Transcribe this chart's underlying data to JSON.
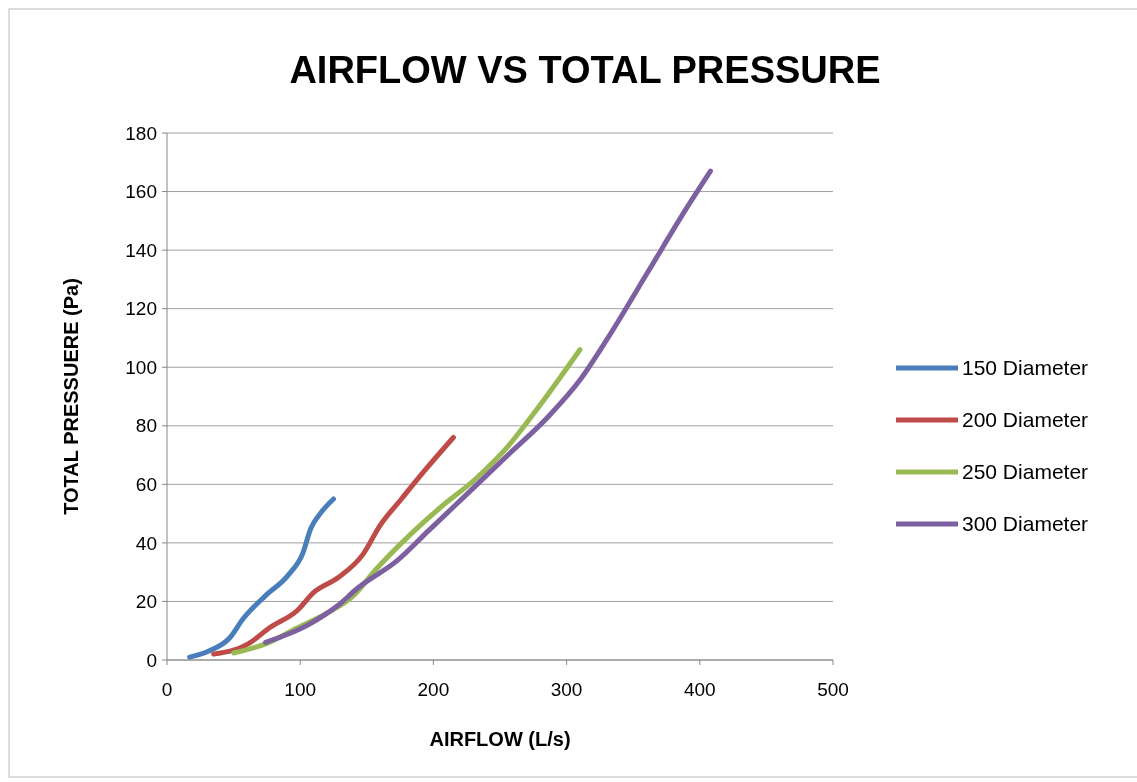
{
  "chart_data": {
    "type": "line",
    "title": "AIRFLOW VS TOTAL PRESSURE",
    "xlabel": "AIRFLOW (L/s)",
    "ylabel": "TOTAL PRESSUERE (Pa)",
    "xlim": [
      0,
      500
    ],
    "xticks": [
      0,
      100,
      200,
      300,
      400,
      500
    ],
    "ylim": [
      0,
      180
    ],
    "yticks": [
      0,
      20,
      40,
      60,
      80,
      100,
      120,
      140,
      160,
      180
    ],
    "grid": "y",
    "legend": "right",
    "marker": "none",
    "line_style": "solid",
    "series": [
      {
        "name": "150 Diameter",
        "color": "#4a7ebb",
        "x": [
          17,
          31,
          47,
          57,
          74,
          91,
          102,
          108,
          115,
          125
        ],
        "values": [
          1,
          3,
          7.5,
          14,
          22,
          29,
          36.5,
          45,
          50,
          55
        ]
      },
      {
        "name": "200 Diameter",
        "color": "#be4b48",
        "x": [
          35,
          61,
          77,
          98,
          110,
          128,
          147,
          160,
          176,
          194,
          215
        ],
        "values": [
          2,
          5.5,
          11,
          17,
          23,
          28,
          36,
          46,
          55,
          65,
          76
        ]
      },
      {
        "name": "250 Diameter",
        "color": "#98b954",
        "x": [
          50,
          74,
          98,
          120,
          140,
          157,
          183,
          205,
          232,
          256,
          275,
          310
        ],
        "values": [
          2.4,
          5.5,
          11,
          16,
          22,
          31,
          43,
          52,
          62,
          73,
          84,
          106
        ]
      },
      {
        "name": "300 Diameter",
        "color": "#7d60a0",
        "x": [
          74,
          106,
          128,
          143,
          173,
          196,
          226,
          256,
          286,
          309,
          331,
          361,
          391,
          408
        ],
        "values": [
          6,
          12,
          18.5,
          24.5,
          34,
          44,
          57,
          70,
          83,
          95,
          110,
          132.5,
          155,
          167
        ]
      }
    ]
  }
}
